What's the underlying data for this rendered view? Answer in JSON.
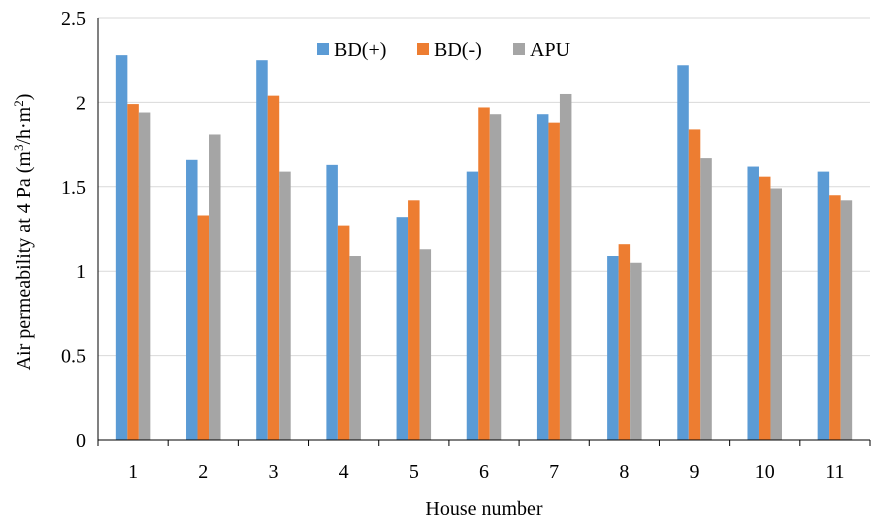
{
  "chart_data": {
    "type": "bar",
    "xlabel": "House number",
    "ylabel_main": "Air permeability at 4 Pa (m",
    "ylabel_sup1": "3",
    "ylabel_mid": "/h·m",
    "ylabel_sup2": "2",
    "ylabel_end": ")",
    "categories": [
      "1",
      "2",
      "3",
      "4",
      "5",
      "6",
      "7",
      "8",
      "9",
      "10",
      "11"
    ],
    "ylim": [
      0,
      2.5
    ],
    "yticks": [
      "0",
      "0.5",
      "1",
      "1.5",
      "2",
      "2.5"
    ],
    "ytick_values": [
      0,
      0.5,
      1,
      1.5,
      2,
      2.5
    ],
    "grid": true,
    "legend_position": "top-center",
    "series": [
      {
        "name": "BD(+)",
        "color": "#5B9BD5",
        "values": [
          2.28,
          1.66,
          2.25,
          1.63,
          1.32,
          1.59,
          1.93,
          1.09,
          2.22,
          1.62,
          1.59
        ]
      },
      {
        "name": "BD(-)",
        "color": "#ED7D31",
        "values": [
          1.99,
          1.33,
          2.04,
          1.27,
          1.42,
          1.97,
          1.88,
          1.16,
          1.84,
          1.56,
          1.45
        ]
      },
      {
        "name": "APU",
        "color": "#A5A5A5",
        "values": [
          1.94,
          1.81,
          1.59,
          1.09,
          1.13,
          1.93,
          2.05,
          1.05,
          1.67,
          1.49,
          1.42
        ]
      }
    ]
  }
}
